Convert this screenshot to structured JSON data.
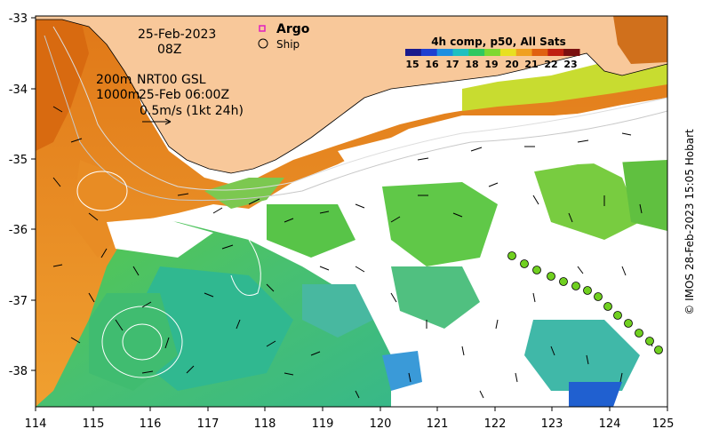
{
  "map": {
    "date": "25-Feb-2023",
    "hour": "08Z",
    "iso_line_1": "200m",
    "iso_line_2": "1000m",
    "product": "NRT00 GSL",
    "product_time": "25-Feb 06:00Z",
    "scale_label": "0.5m/s (1kt 24h)",
    "legend_argo": "Argo",
    "legend_ship": "Ship",
    "colorbar_title": "4h comp, p50, All Sats",
    "colorbar_ticks": [
      "15",
      "16",
      "17",
      "18",
      "19",
      "20",
      "21",
      "22",
      "23"
    ],
    "colorbar_colors": [
      "#1a1a8c",
      "#1f3fd0",
      "#1f8fe0",
      "#20c0c0",
      "#30c860",
      "#7ed830",
      "#e8e020",
      "#f0a020",
      "#e06010",
      "#c02010",
      "#7a1010"
    ],
    "x_ticks": [
      "114",
      "115",
      "116",
      "117",
      "118",
      "119",
      "120",
      "121",
      "122",
      "123",
      "124",
      "125"
    ],
    "y_ticks": [
      "-33",
      "-34",
      "-35",
      "-36",
      "-37",
      "-38"
    ],
    "credit": "© IMOS 28-Feb-2023 15:05 Hobart",
    "land_color": "#f8c89a"
  }
}
